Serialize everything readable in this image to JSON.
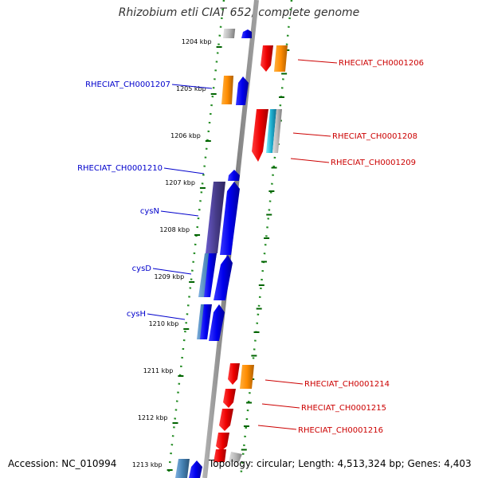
{
  "title": "Rhizobium etli CIAT 652, complete genome",
  "footer": {
    "accession": "Accession: NC_010994",
    "summary": "Topology: circular; Length: 4,513,324 bp; Genes: 4,403"
  },
  "ticks": [
    {
      "kbp": 1204,
      "label": "1204 kbp"
    },
    {
      "kbp": 1205,
      "label": "1205 kbp"
    },
    {
      "kbp": 1206,
      "label": "1206 kbp"
    },
    {
      "kbp": 1207,
      "label": "1207 kbp"
    },
    {
      "kbp": 1208,
      "label": "1208 kbp"
    },
    {
      "kbp": 1209,
      "label": "1209 kbp"
    },
    {
      "kbp": 1210,
      "label": "1210 kbp"
    },
    {
      "kbp": 1211,
      "label": "1211 kbp"
    },
    {
      "kbp": 1212,
      "label": "1212 kbp"
    },
    {
      "kbp": 1213,
      "label": "1213 kbp"
    }
  ],
  "gene_labels_left": [
    {
      "text": "RHECIAT_CH0001207",
      "color": "#0000cc"
    },
    {
      "text": "RHECIAT_CH0001210",
      "color": "#0000cc"
    },
    {
      "text": "cysN",
      "color": "#0000cc"
    },
    {
      "text": "cysD",
      "color": "#0000cc"
    },
    {
      "text": "cysH",
      "color": "#0000cc"
    }
  ],
  "gene_labels_right": [
    {
      "text": "RHECIAT_CH0001206",
      "color": "#cc0000"
    },
    {
      "text": "RHECIAT_CH0001208",
      "color": "#cc0000"
    },
    {
      "text": "RHECIAT_CH0001209",
      "color": "#cc0000"
    },
    {
      "text": "RHECIAT_CH0001214",
      "color": "#cc0000"
    },
    {
      "text": "RHECIAT_CH0001215",
      "color": "#cc0000"
    },
    {
      "text": "RHECIAT_CH0001216",
      "color": "#cc0000"
    }
  ],
  "colors": {
    "backbone": "#8c8c8c",
    "minus_strand": "#0000ee",
    "plus_strand": "#ee0000",
    "other_gene": "#ff8c00",
    "dotted_ring": "#228b22",
    "tick": "#006400"
  }
}
